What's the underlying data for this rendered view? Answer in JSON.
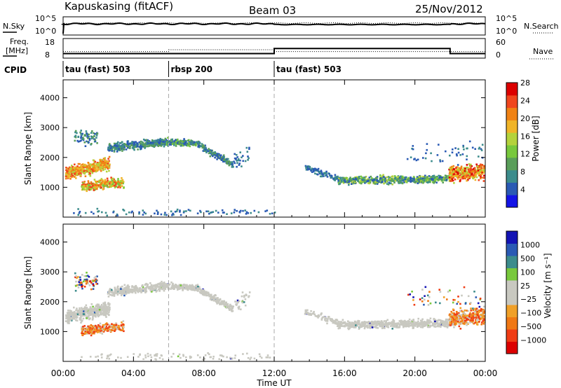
{
  "header": {
    "station": "Kapuskasing (fitACF)",
    "beam": "Beam 03",
    "date": "25/Nov/2012"
  },
  "side_labels": {
    "nsky": "N.Sky",
    "freq_line1": "Freq.",
    "freq_line2": "[MHz]",
    "cpid": "CPID",
    "nsearch": "N.Search",
    "nave": "Nave",
    "power_axis": "Power [dB]",
    "velocity_axis": "Velocity [m s⁻¹]",
    "slant_range": "Slant Range [km]",
    "time_axis": "Time UT"
  },
  "colors": {
    "power": [
      "#1414e6",
      "#2a5ab4",
      "#3c8c8c",
      "#5a9e5a",
      "#78c83c",
      "#b4d23c",
      "#f0b428",
      "#f08214",
      "#f0461e",
      "#dc0000"
    ],
    "velocity": [
      "#dc0000",
      "#f03c14",
      "#f07814",
      "#f0a028",
      "#c8c8c0",
      "#c8c8c0",
      "#78c83c",
      "#3c8c8c",
      "#2a5ab4",
      "#1414b4"
    ],
    "gray": "#c8c8c0",
    "dash": "#aaaaaa"
  },
  "chart_data": [
    {
      "type": "line",
      "panel": "noise",
      "ylabels_left": [
        "10^5",
        "10^0"
      ],
      "ylabels_right": [
        "10^5",
        "10^0"
      ]
    },
    {
      "type": "line",
      "panel": "frequency-nave",
      "left_ticks": [
        "18",
        "8"
      ],
      "right_ticks": [
        "60",
        "0"
      ],
      "frequency_steps": [
        {
          "from": 0,
          "to": 12,
          "value": 10.5
        },
        {
          "from": 12,
          "to": 22,
          "value": 13.8
        },
        {
          "from": 22,
          "to": 24,
          "value": 10.5
        }
      ],
      "nave_steps": [
        {
          "from": 0,
          "to": 6,
          "value": 23
        },
        {
          "from": 6,
          "to": 12,
          "value": 30
        },
        {
          "from": 12,
          "to": 24,
          "value": 23
        }
      ]
    },
    {
      "type": "table",
      "panel": "cpid",
      "segments": [
        {
          "start": 0,
          "label": "tau (fast) 503"
        },
        {
          "start": 6,
          "label": "rbsp 200"
        },
        {
          "start": 12,
          "label": "tau (fast) 503"
        }
      ]
    },
    {
      "type": "heatmap",
      "panel": "power",
      "xlabel": "Time UT",
      "ylabel": "Slant Range [km]",
      "xlim": [
        0,
        24
      ],
      "ylim": [
        0,
        4600
      ],
      "yticks": [
        1000,
        2000,
        3000,
        4000
      ],
      "colorbar_label": "Power [dB]",
      "colorbar_ticks": [
        4,
        8,
        12,
        16,
        20,
        24,
        28
      ]
    },
    {
      "type": "heatmap",
      "panel": "velocity",
      "xlabel": "Time UT",
      "ylabel": "Slant Range [km]",
      "xlim": [
        0,
        24
      ],
      "ylim": [
        0,
        4600
      ],
      "yticks": [
        1000,
        2000,
        3000,
        4000
      ],
      "colorbar_label": "Velocity [m s⁻¹]",
      "colorbar_ticks": [
        "1000",
        "500",
        "100",
        "25",
        "−25",
        "−100",
        "−500",
        "−1000"
      ]
    }
  ],
  "time_ticks": [
    "00:00",
    "04:00",
    "08:00",
    "12:00",
    "16:00",
    "20:00",
    "00:00"
  ]
}
